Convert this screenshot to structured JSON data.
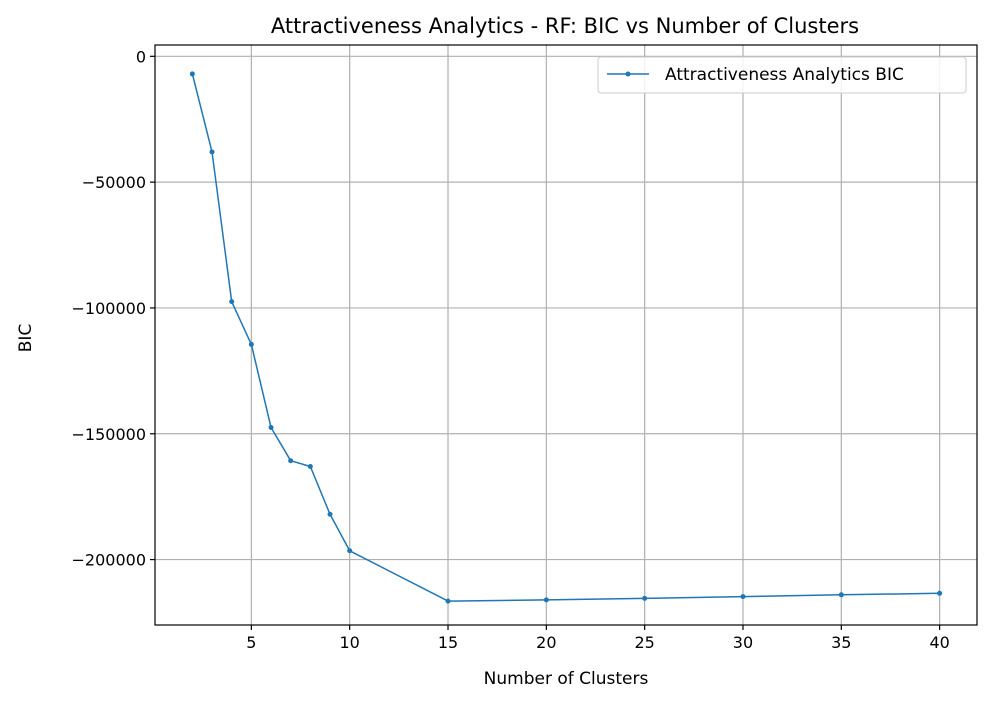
{
  "chart_data": {
    "type": "line",
    "title": "Attractiveness Analytics - RF: BIC vs Number of Clusters",
    "xlabel": "Number of Clusters",
    "ylabel": "BIC",
    "xlim": [
      0.1,
      41.9
    ],
    "ylim": [
      -226000,
      4500
    ],
    "xticks": [
      5,
      10,
      15,
      20,
      25,
      30,
      35,
      40
    ],
    "xtick_labels": [
      "5",
      "10",
      "15",
      "20",
      "25",
      "30",
      "35",
      "40"
    ],
    "yticks": [
      0,
      -50000,
      -100000,
      -150000,
      -200000
    ],
    "ytick_labels": [
      "0",
      "−50000",
      "−100000",
      "−150000",
      "−200000"
    ],
    "grid": true,
    "legend_position": "top-right",
    "series": [
      {
        "name": "Attractiveness Analytics BIC",
        "color": "#1f77b4",
        "x": [
          2,
          3,
          4,
          5,
          6,
          7,
          8,
          9,
          10,
          15,
          20,
          25,
          30,
          35,
          40
        ],
        "y": [
          -7000,
          -38000,
          -97500,
          -114500,
          -147500,
          -160700,
          -163000,
          -182000,
          -196500,
          -216500,
          -216000,
          -215400,
          -214700,
          -214000,
          -213400
        ]
      }
    ]
  }
}
